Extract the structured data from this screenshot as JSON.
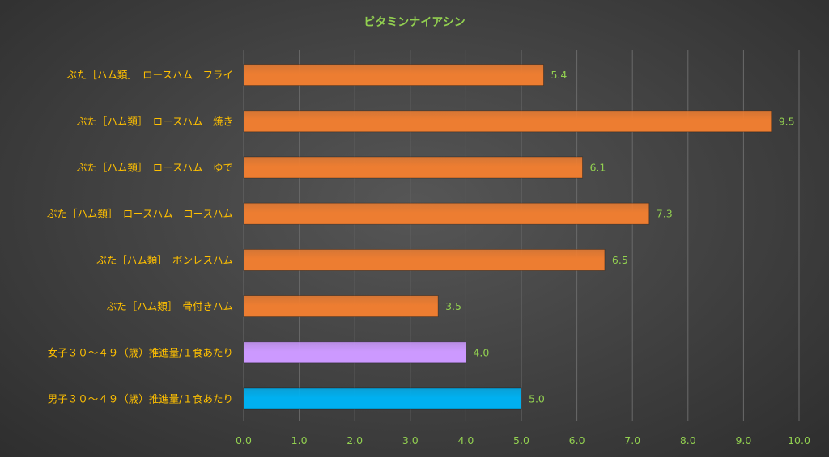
{
  "chart_data": {
    "type": "bar",
    "orientation": "horizontal",
    "title": "ビタミンナイアシン",
    "xlabel": "",
    "ylabel": "",
    "xlim": [
      0,
      10
    ],
    "grid": true,
    "legend": "none",
    "ticks": [
      "0.0",
      "1.0",
      "2.0",
      "3.0",
      "4.0",
      "5.0",
      "6.0",
      "7.0",
      "8.0",
      "9.0",
      "10.0"
    ],
    "categories": [
      "ぶた［ハム類］　ロースハム　フライ",
      "ぶた［ハム類］　ロースハム　焼き",
      "ぶた［ハム類］　ロースハム　ゆで",
      "ぶた［ハム類］　ロースハム　ロースハム",
      "ぶた［ハム類］　ボンレスハム",
      "ぶた［ハム類］　骨付きハム",
      "女子３０～４９（歳）推進量/１食あたり",
      "男子３０～４９（歳）推進量/１食あたり"
    ],
    "values": [
      5.4,
      9.5,
      6.1,
      7.3,
      6.5,
      3.5,
      4.0,
      5.0
    ],
    "value_labels": [
      "5.4",
      "9.5",
      "6.1",
      "7.3",
      "6.5",
      "3.5",
      "4.0",
      "5.0"
    ],
    "colors": [
      "#ed7d31",
      "#ed7d31",
      "#ed7d31",
      "#ed7d31",
      "#ed7d31",
      "#ed7d31",
      "#cc99ff",
      "#00b0f0"
    ]
  },
  "theme": {
    "title_color": "#92d050",
    "category_label_color": "#ffc000",
    "tick_color": "#92d050",
    "data_label_color": "#92d050",
    "gridline_color": "#6a6a6a"
  }
}
